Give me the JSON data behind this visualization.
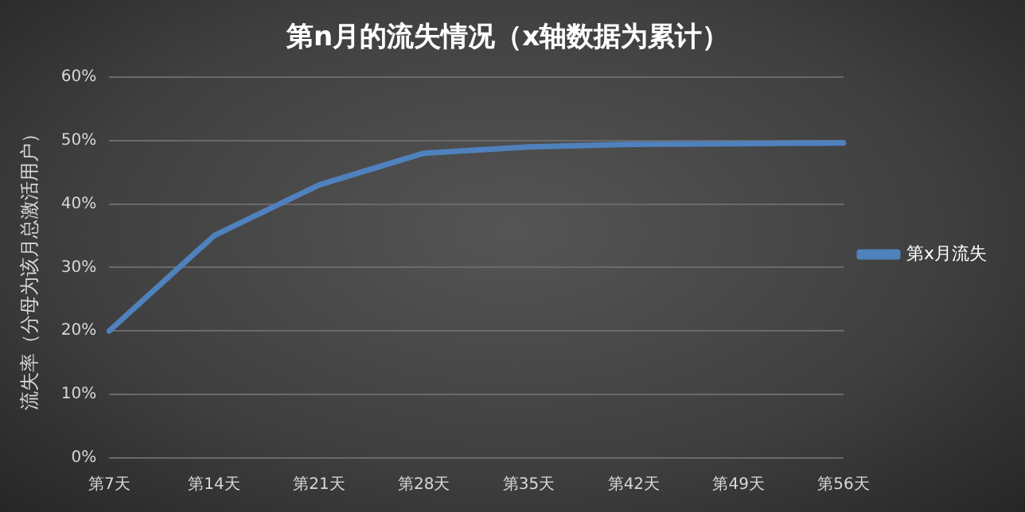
{
  "chart_data": {
    "type": "line",
    "title": "第n月的流失情况（x轴数据为累计）",
    "ylabel": "流失率（分母为该月总激活用户）",
    "categories": [
      "第7天",
      "第14天",
      "第21天",
      "第28天",
      "第35天",
      "第42天",
      "第49天",
      "第56天"
    ],
    "series": [
      {
        "name": "第x月流失",
        "color": "#4f81bd",
        "values": [
          20,
          35,
          43,
          48,
          49,
          49.4,
          49.5,
          49.6
        ]
      }
    ],
    "ylim": [
      0,
      60
    ],
    "yticks": [
      {
        "value": 0,
        "label": "0%"
      },
      {
        "value": 10,
        "label": "10%"
      },
      {
        "value": 20,
        "label": "20%"
      },
      {
        "value": 30,
        "label": "30%"
      },
      {
        "value": 40,
        "label": "40%"
      },
      {
        "value": 50,
        "label": "50%"
      },
      {
        "value": 60,
        "label": "60%"
      }
    ],
    "grid": "y",
    "legend": "right",
    "marker": "none",
    "line_style": "solid"
  }
}
